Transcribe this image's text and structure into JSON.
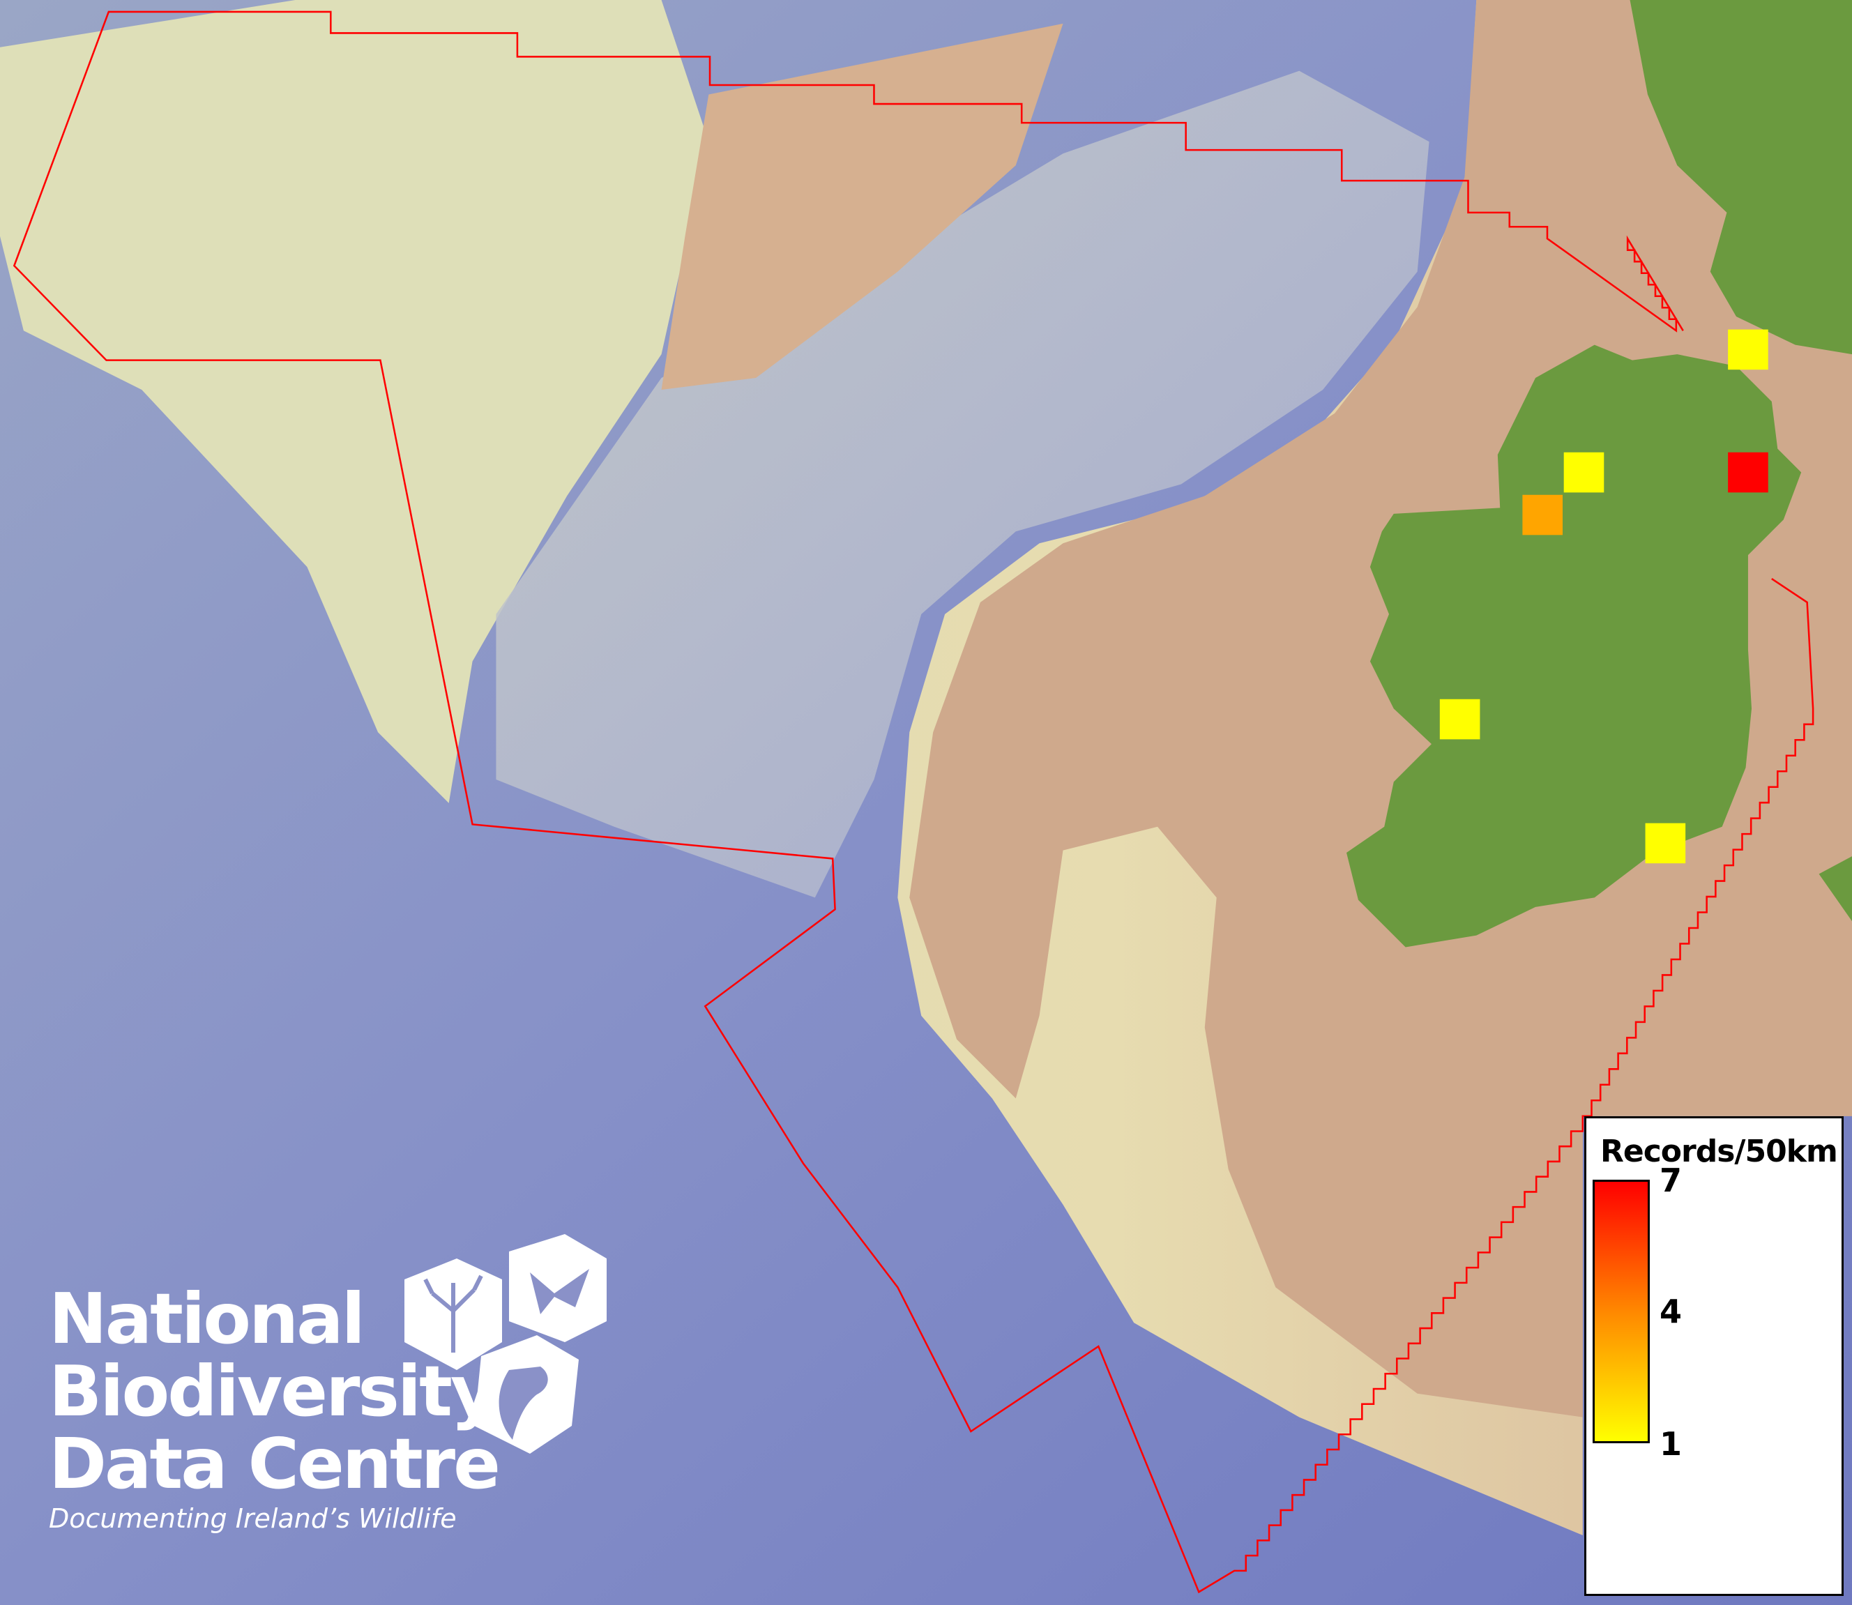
{
  "map": {
    "colors": {
      "deep_ocean": "#7d86c4",
      "slope": "#e6e3b6",
      "shelf": "#cfa98c",
      "land": "#6b9a3f",
      "boundary": "#ff0000"
    },
    "boundary_label": "",
    "records": [
      {
        "value": 1,
        "color": "#ffff00"
      },
      {
        "value": 1,
        "color": "#ffff00"
      },
      {
        "value": 7,
        "color": "#ff0000"
      },
      {
        "value": 3,
        "color": "#ffa500"
      },
      {
        "value": 1,
        "color": "#ffff00"
      },
      {
        "value": 1,
        "color": "#ffff00"
      }
    ]
  },
  "legend": {
    "title": "Records/50km",
    "min": 1,
    "mid": 4,
    "max": 7,
    "min_label": "1",
    "mid_label": "4",
    "max_label": "7",
    "color_low": "#ffff00",
    "color_mid": "#ff8800",
    "color_high": "#ff0000"
  },
  "logo": {
    "line1": "National",
    "line2": "Biodiversity",
    "line3": "Data Centre",
    "tagline": "Documenting Ireland’s Wildlife",
    "icons": [
      "plant-icon",
      "butterfly-icon",
      "seahorse-icon"
    ]
  }
}
